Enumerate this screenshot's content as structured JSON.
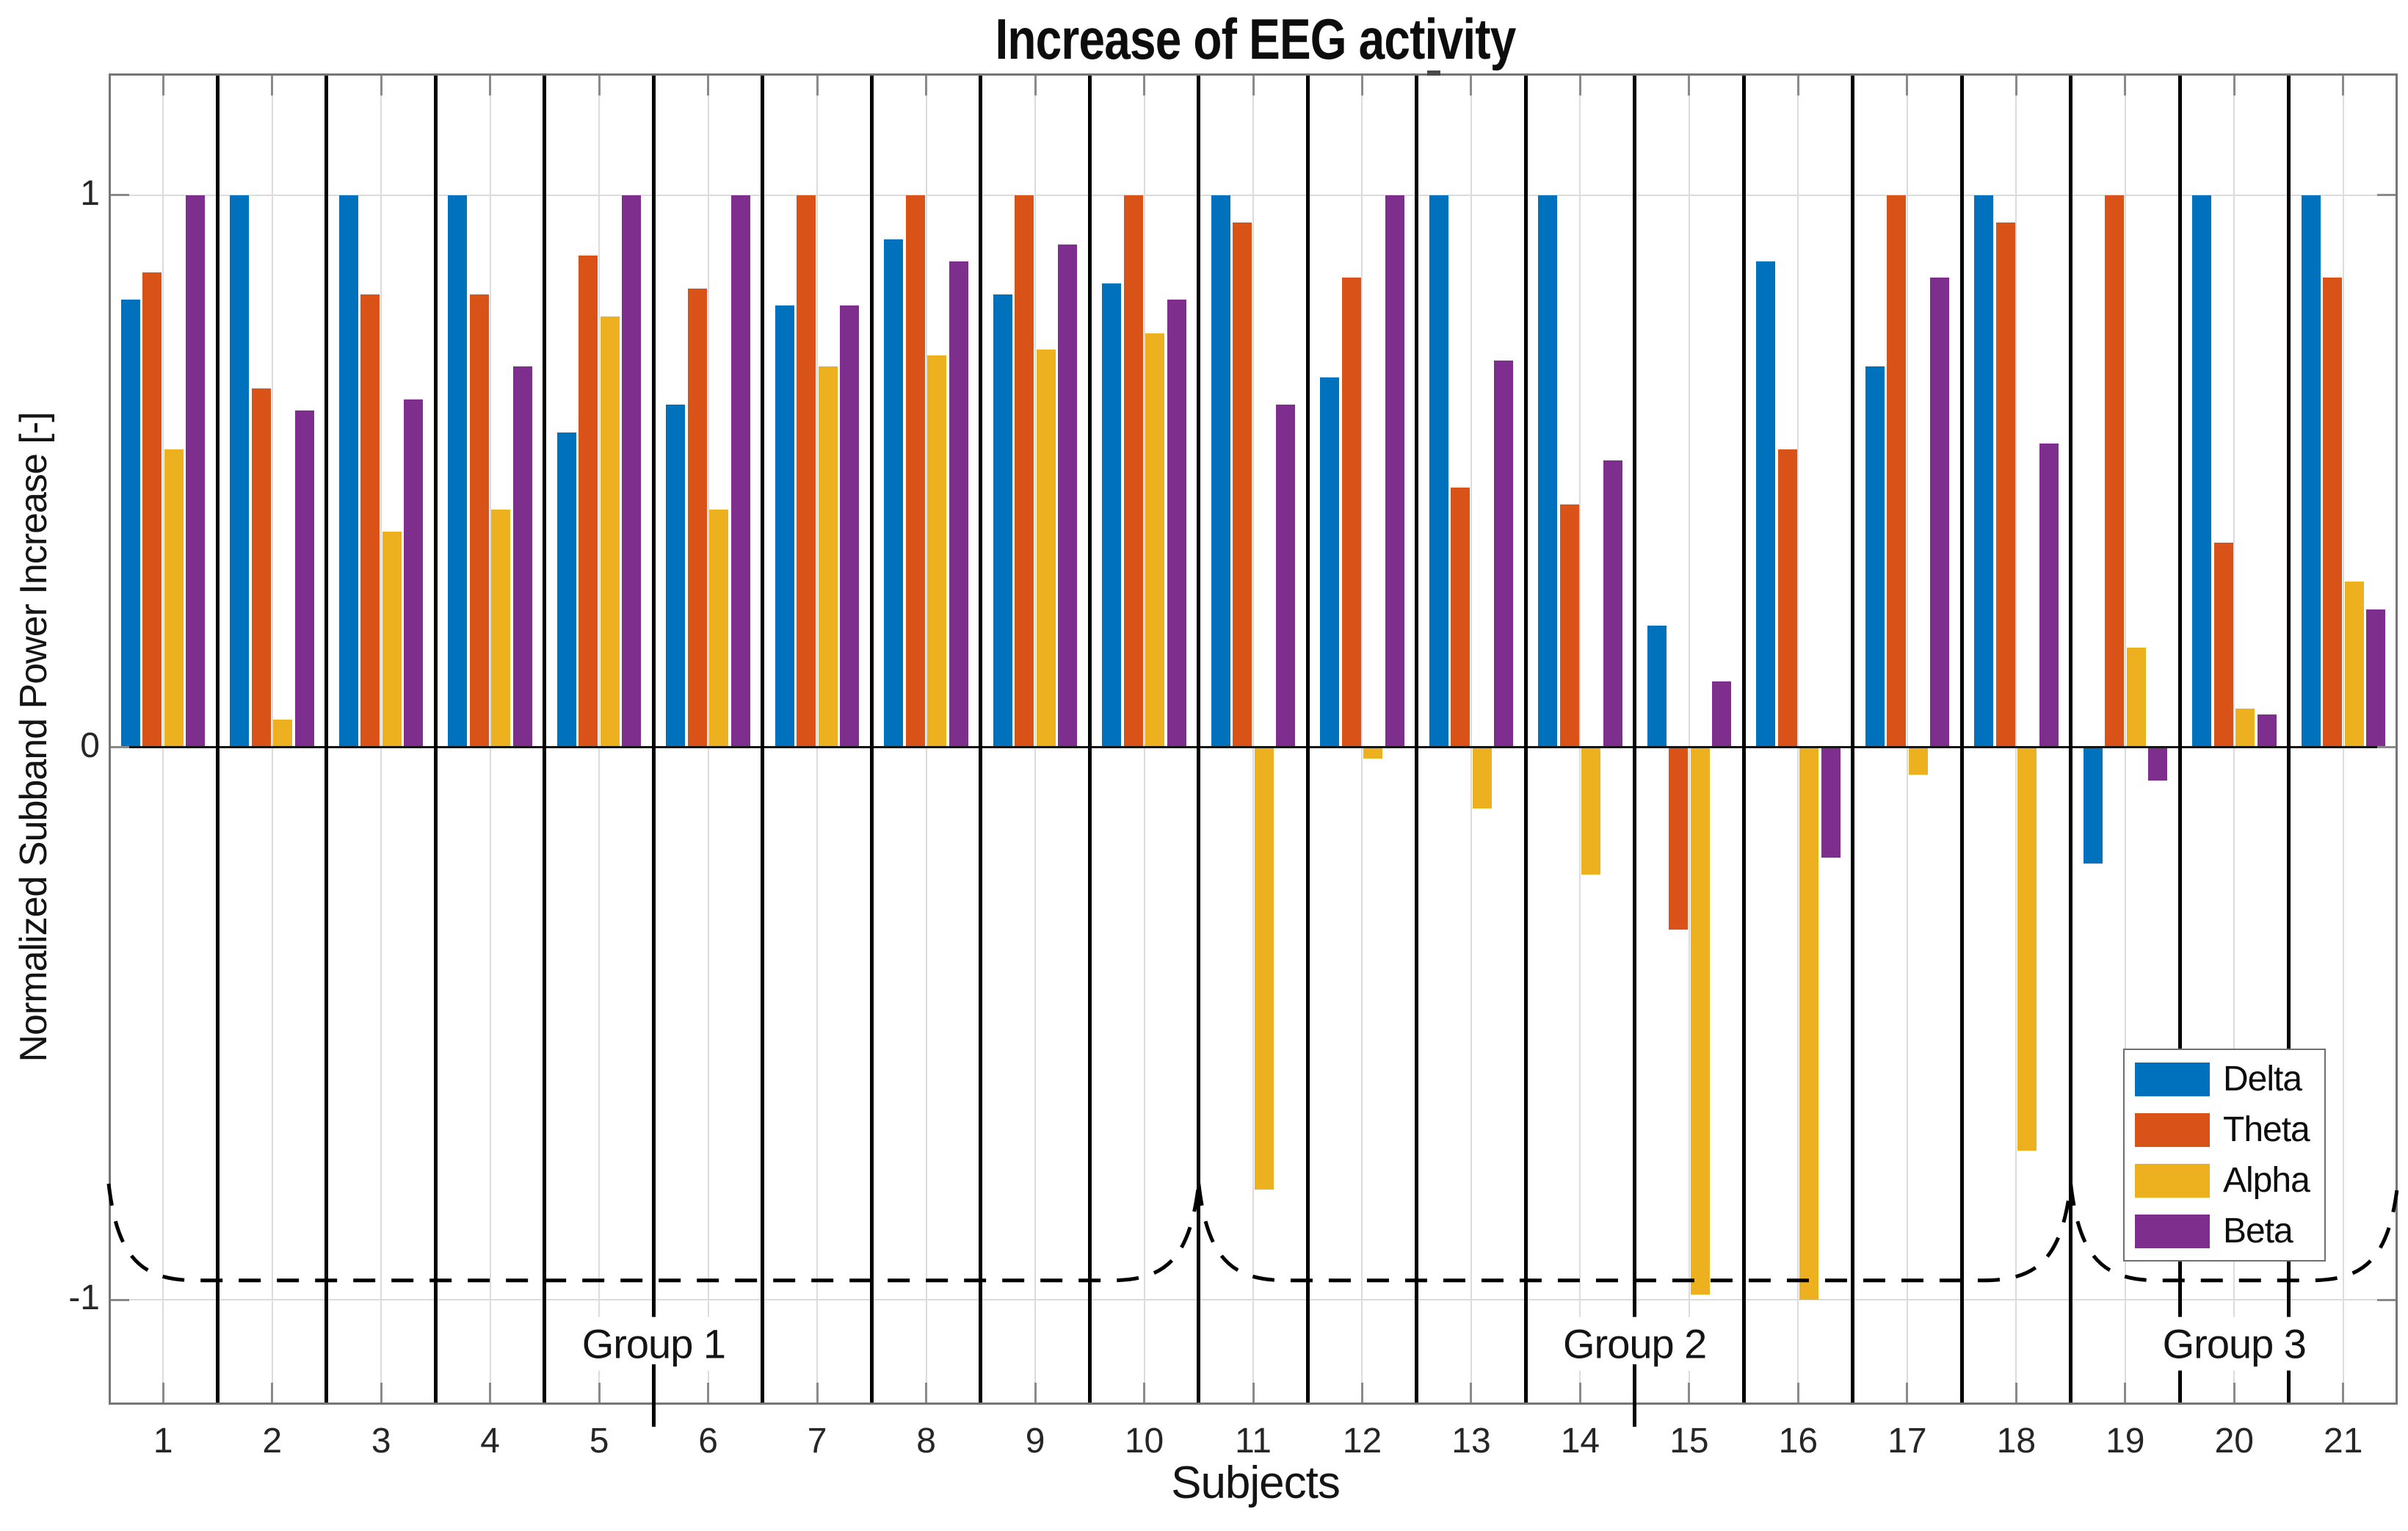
{
  "chart_data": {
    "type": "bar",
    "title": "Increase of EEG activity",
    "xlabel": "Subjects",
    "ylabel": "Normalized Subband Power Increase [-]",
    "categories": [
      "1",
      "2",
      "3",
      "4",
      "5",
      "6",
      "7",
      "8",
      "9",
      "10",
      "11",
      "12",
      "13",
      "14",
      "15",
      "16",
      "17",
      "18",
      "19",
      "20",
      "21"
    ],
    "series": [
      {
        "name": "Delta",
        "color": "#0072BD",
        "values": [
          0.81,
          1.0,
          1.0,
          1.0,
          0.57,
          0.62,
          0.8,
          0.92,
          0.82,
          0.84,
          1.0,
          0.67,
          1.0,
          1.0,
          0.22,
          0.88,
          0.69,
          1.0,
          -0.21,
          1.0,
          1.0
        ]
      },
      {
        "name": "Theta",
        "color": "#D95319",
        "values": [
          0.86,
          0.65,
          0.82,
          0.82,
          0.89,
          0.83,
          1.0,
          1.0,
          1.0,
          1.0,
          0.95,
          0.85,
          0.47,
          0.44,
          -0.33,
          0.54,
          1.0,
          0.95,
          1.0,
          0.37,
          0.85
        ]
      },
      {
        "name": "Alpha",
        "color": "#EDB120",
        "values": [
          0.54,
          0.05,
          0.39,
          0.43,
          0.78,
          0.43,
          0.69,
          0.71,
          0.72,
          0.75,
          -0.8,
          -0.02,
          -0.11,
          -0.23,
          -0.99,
          -1.0,
          -0.05,
          -0.73,
          0.18,
          0.07,
          0.3
        ]
      },
      {
        "name": "Beta",
        "color": "#7E2F8E",
        "values": [
          1.0,
          0.61,
          0.63,
          0.69,
          1.0,
          1.0,
          0.8,
          0.88,
          0.91,
          0.81,
          0.62,
          1.0,
          0.7,
          0.52,
          0.12,
          -0.2,
          0.85,
          0.55,
          -0.06,
          0.06,
          0.25
        ]
      }
    ],
    "ylim": [
      -1.19,
      1.22
    ],
    "yticks": [
      {
        "v": 1,
        "label": "1"
      },
      {
        "v": 0,
        "label": "0"
      },
      {
        "v": -1,
        "label": "-1"
      }
    ],
    "grid": {
      "vertical": "per-category",
      "horizontal": [
        1,
        -1
      ]
    },
    "groups": [
      {
        "label": "Group 1",
        "from": 1,
        "to": 10,
        "label_at": 5.5,
        "anchor_tick": true
      },
      {
        "label": "Group 2",
        "from": 11,
        "to": 18,
        "label_at": 14.5,
        "anchor_tick": true
      },
      {
        "label": "Group 3",
        "from": 19,
        "to": 21,
        "label_at": 20.0,
        "anchor_tick": false
      }
    ],
    "brace": {
      "style": "dashed",
      "base_y": -0.965,
      "peak_y": -0.79
    },
    "legend": {
      "position": "bottom-right"
    }
  }
}
